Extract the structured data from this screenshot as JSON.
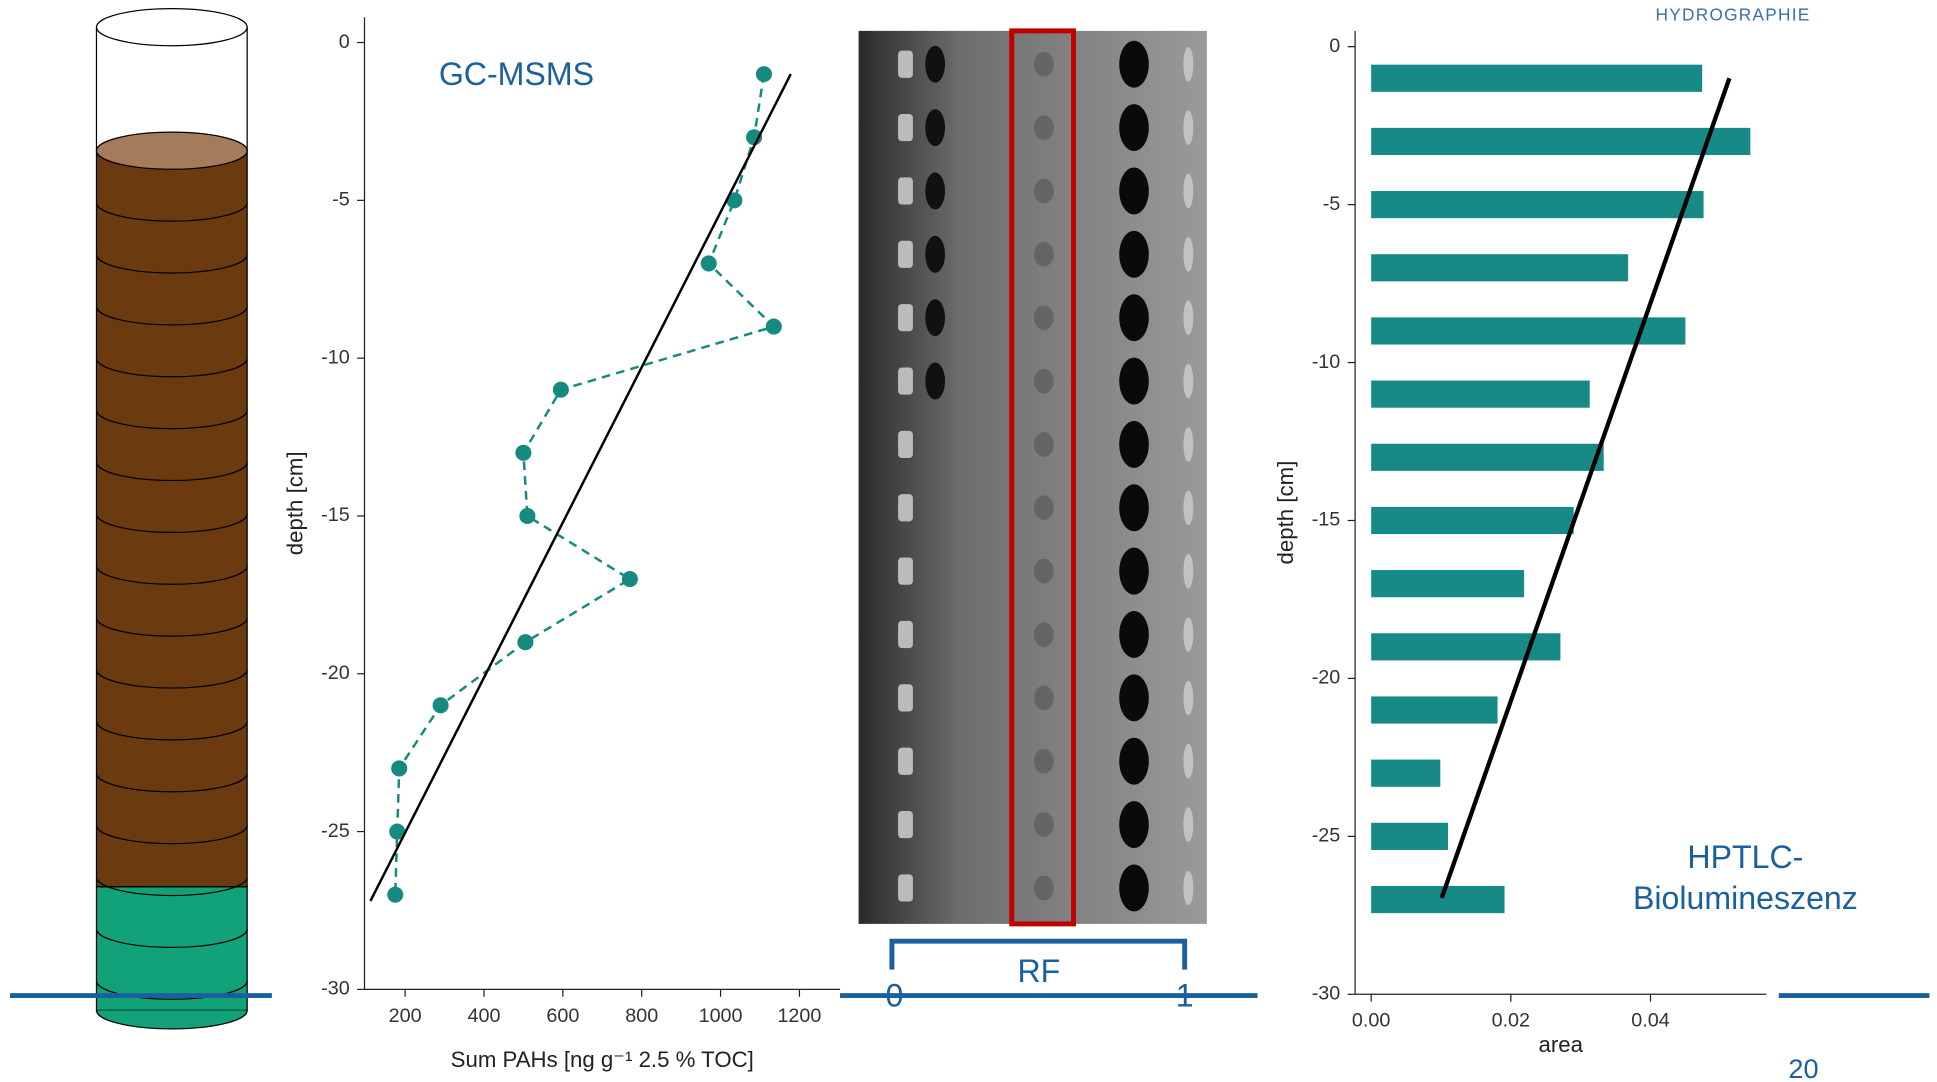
{
  "header": "HYDROGRAPHIE",
  "rf_scale": {
    "label": "RF",
    "start": 0,
    "end": 1
  },
  "page_number": "20",
  "chart_data": [
    {
      "type": "line",
      "annotation": "GC-MSMS",
      "xlabel": "Sum PAHs [ng g⁻¹ 2.5 % TOC]",
      "ylabel": "depth [cm]",
      "xlim": [
        97,
        1303
      ],
      "ylim": [
        -30,
        0.8
      ],
      "xticks": [
        200,
        400,
        600,
        800,
        1000,
        1200
      ],
      "yticks": [
        0,
        -5,
        -10,
        -15,
        -20,
        -25,
        -30
      ],
      "series": [
        {
          "color": "#168a80",
          "line_style": "dashed",
          "markers": true,
          "x": [
            1110,
            1085,
            1035,
            970,
            1135,
            595,
            500,
            510,
            770,
            505,
            290,
            185,
            180,
            175
          ],
          "y": [
            -1,
            -3,
            -5,
            -7,
            -9,
            -11,
            -13,
            -15,
            -17,
            -19,
            -21,
            -23,
            -25,
            -27
          ]
        },
        {
          "color": "#000000",
          "line_style": "solid",
          "markers": false,
          "x": [
            112,
            1178
          ],
          "y": [
            -27.2,
            -1
          ]
        }
      ]
    },
    {
      "type": "hbar",
      "annotation": [
        "HPTLC-",
        "Biolumineszenz"
      ],
      "xlabel": "area",
      "ylabel": "depth [cm]",
      "xlim": [
        -0.0023,
        0.0566
      ],
      "ylim": [
        -30,
        0.5
      ],
      "xticks": [
        {
          "value": 0,
          "label": "0.00"
        },
        {
          "value": 0.02,
          "label": "0.02"
        },
        {
          "value": 0.04,
          "label": "0.04"
        }
      ],
      "yticks": [
        0,
        -5,
        -10,
        -15,
        -20,
        -25,
        -30
      ],
      "color": "#178a88",
      "y": [
        -1,
        -3,
        -5,
        -7,
        -9,
        -11,
        -13,
        -15,
        -17,
        -19,
        -21,
        -23,
        -25,
        -27
      ],
      "values": [
        0.0474,
        0.0543,
        0.0476,
        0.0368,
        0.045,
        0.0313,
        0.0333,
        0.029,
        0.0219,
        0.0271,
        0.0181,
        0.0099,
        0.011,
        0.0191
      ],
      "trend": {
        "color": "#000000",
        "x": [
          0.0101,
          0.0513
        ],
        "y": [
          -26.95,
          -1
        ]
      }
    }
  ]
}
